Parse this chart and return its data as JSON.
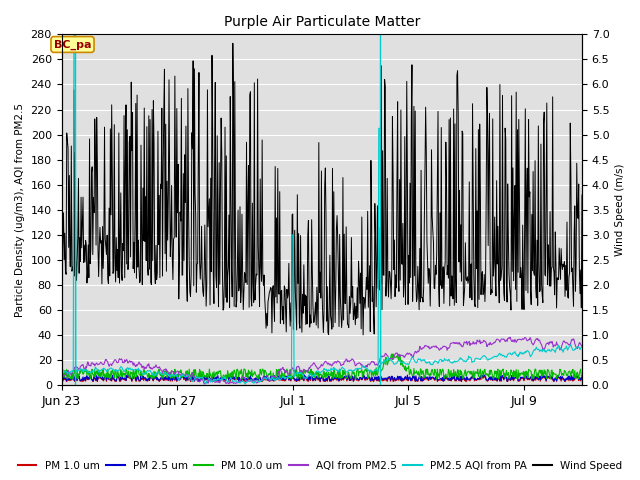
{
  "title": "Purple Air Particulate Matter",
  "ylabel_left": "Particle Density (ug/m3), AQI from PM2.5",
  "ylabel_right": "Wind Speed (m/s)",
  "xlabel": "Time",
  "ylim_left": [
    0,
    280
  ],
  "ylim_right": [
    0,
    7.0
  ],
  "yticks_left": [
    0,
    20,
    40,
    60,
    80,
    100,
    120,
    140,
    160,
    180,
    200,
    220,
    240,
    260,
    280
  ],
  "yticks_right": [
    0.0,
    0.5,
    1.0,
    1.5,
    2.0,
    2.5,
    3.0,
    3.5,
    4.0,
    4.5,
    5.0,
    5.5,
    6.0,
    6.5,
    7.0
  ],
  "xtick_positions": [
    0,
    4,
    8,
    12,
    16
  ],
  "xtick_labels": [
    "Jun 23",
    "Jun 27",
    "Jul 1",
    "Jul 5",
    "Jul 9"
  ],
  "annotation_text": "BC_pa",
  "colors": {
    "pm1": "#cc0000",
    "pm25": "#0000cc",
    "pm10": "#00bb00",
    "aqi_pm25": "#9933cc",
    "aqi_pa": "#00cccc",
    "wind": "#000000",
    "background": "#e0e0e0",
    "grid": "#ffffff",
    "annotation_bg": "#ffff99",
    "annotation_border": "#cc8800"
  },
  "legend_labels": [
    "PM 1.0 um",
    "PM 2.5 um",
    "PM 10.0 um",
    "AQI from PM2.5",
    "PM2.5 AQI from PA",
    "Wind Speed"
  ],
  "seed": 7,
  "n_points": 800,
  "date_start": 0,
  "date_end": 18,
  "cyan_spike1_x": 0.45,
  "cyan_spike2_x": 11.0
}
